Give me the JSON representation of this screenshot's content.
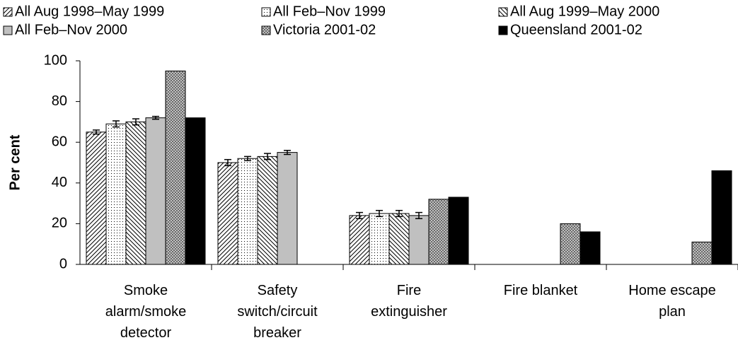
{
  "chart_data": {
    "type": "bar",
    "y_label": "Per cent",
    "categories": [
      "Smoke alarm/smoke detector",
      "Safety switch/circuit breaker",
      "Fire extinguisher",
      "Fire blanket",
      "Home escape plan"
    ],
    "series": [
      {
        "name": "All Aug 1998–May 1999",
        "color": "#000000",
        "pattern": "hatch-fwd",
        "values": [
          65,
          50,
          24,
          0,
          0
        ],
        "errors": [
          1,
          1.5,
          1.5,
          null,
          null
        ]
      },
      {
        "name": "All Feb–Nov 1999",
        "color": "#000000",
        "pattern": "dots",
        "values": [
          69,
          52,
          25,
          0,
          0
        ],
        "errors": [
          1.5,
          1,
          1.5,
          null,
          null
        ]
      },
      {
        "name": "All Aug 1999–May 2000",
        "color": "#000000",
        "pattern": "hatch-back",
        "values": [
          70,
          53,
          25,
          0,
          0
        ],
        "errors": [
          1.5,
          1.5,
          1.5,
          null,
          null
        ]
      },
      {
        "name": "All Feb–Nov 2000",
        "color": "#c0c0c0",
        "pattern": "solid",
        "values": [
          72,
          55,
          24,
          0,
          0
        ],
        "errors": [
          0.7,
          1,
          1.5,
          null,
          null
        ]
      },
      {
        "name": "Victoria 2001-02",
        "color": "#000000",
        "pattern": "cross",
        "values": [
          95,
          null,
          32,
          20,
          11
        ],
        "errors": [
          null,
          null,
          null,
          null,
          null
        ]
      },
      {
        "name": "Queensland 2001-02",
        "color": "#000000",
        "pattern": "solid",
        "values": [
          72,
          null,
          33,
          16,
          46
        ],
        "errors": [
          null,
          null,
          null,
          null,
          null
        ]
      }
    ],
    "ylim": [
      0,
      100
    ],
    "yticks": [
      0,
      20,
      40,
      60,
      80,
      100
    ],
    "grid": false
  }
}
